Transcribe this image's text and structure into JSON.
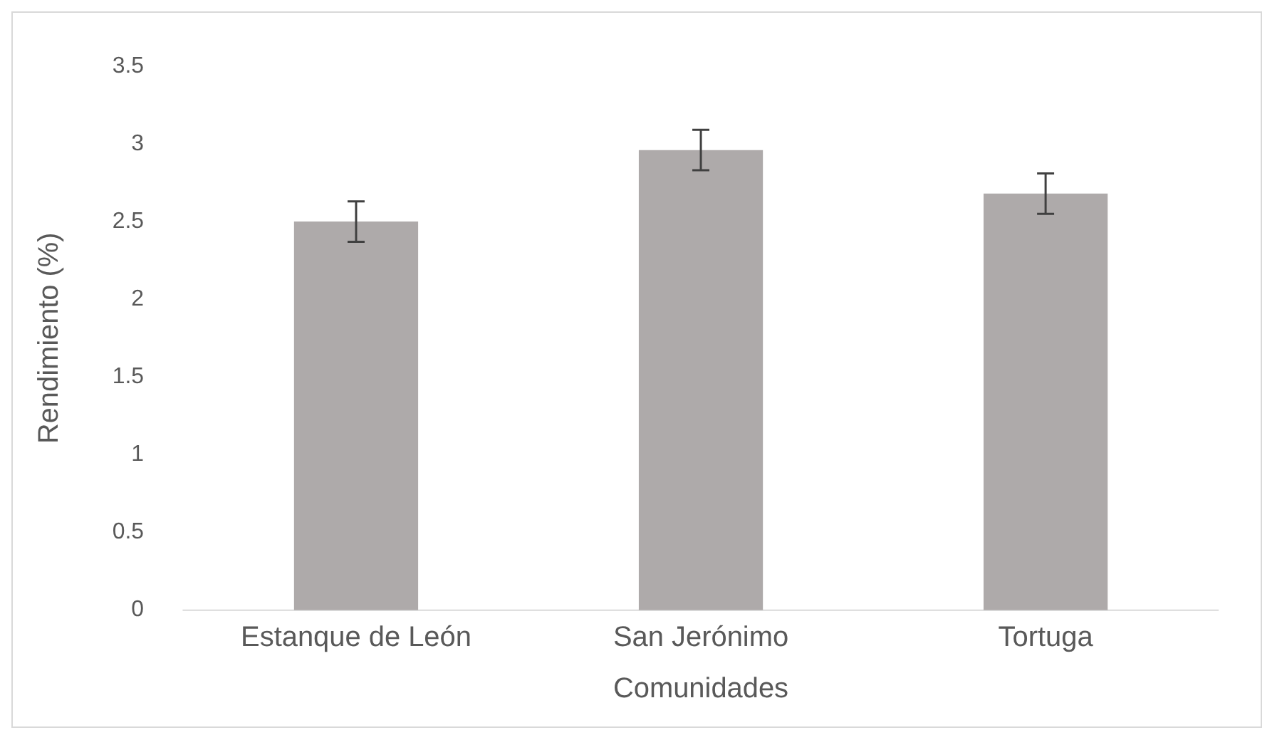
{
  "chart_data": {
    "type": "bar",
    "xlabel": "Comunidades",
    "ylabel": "Rendimiento (%)",
    "categories": [
      "Estanque de León",
      "San Jerónimo",
      "Tortuga"
    ],
    "values": [
      2.5,
      2.96,
      2.68
    ],
    "color": "#aeaaaa",
    "errors": [
      0.13,
      0.13,
      0.13
    ],
    "ylim": [
      0,
      3.5
    ],
    "yticks": [
      0,
      0.5,
      1,
      1.5,
      2,
      2.5,
      3,
      3.5
    ],
    "grid": false,
    "legend": false
  }
}
